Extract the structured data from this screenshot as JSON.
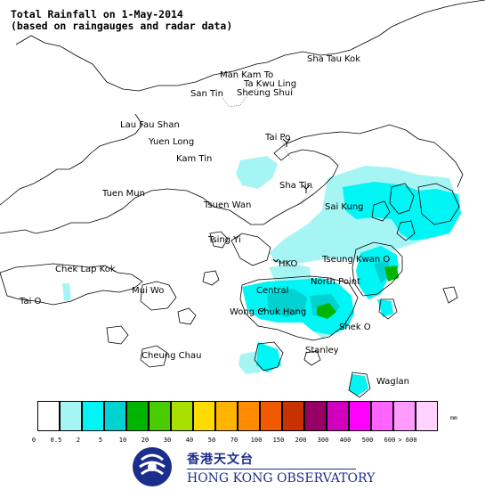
{
  "title": {
    "line1": "Total Rainfall on 1-May-2014",
    "line2": "(based on raingauges and radar data)"
  },
  "places": [
    {
      "name": "Sha Tau Kok"
    },
    {
      "name": "Man Kam To"
    },
    {
      "name": "Ta Kwu Ling"
    },
    {
      "name": "San Tin"
    },
    {
      "name": "Sheung Shui"
    },
    {
      "name": "Lau Fau Shan"
    },
    {
      "name": "Yuen Long"
    },
    {
      "name": "Kam Tin"
    },
    {
      "name": "Tai Po"
    },
    {
      "name": "Sha Tin"
    },
    {
      "name": "Tuen Mun"
    },
    {
      "name": "Tsuen Wan"
    },
    {
      "name": "Sai Kung"
    },
    {
      "name": "Tsing Yi"
    },
    {
      "name": "Chek Lap Kok"
    },
    {
      "name": "HKO"
    },
    {
      "name": "Tseung Kwan O"
    },
    {
      "name": "North Point"
    },
    {
      "name": "Central"
    },
    {
      "name": "Mui Wo"
    },
    {
      "name": "Tai O"
    },
    {
      "name": "Wong Chuk Hang"
    },
    {
      "name": "Shek O"
    },
    {
      "name": "Stanley"
    },
    {
      "name": "Cheung Chau"
    },
    {
      "name": "Waglan"
    }
  ],
  "legend": {
    "unit": "mm",
    "ticks": [
      "0",
      "0.5",
      "2",
      "5",
      "10",
      "20",
      "30",
      "40",
      "50",
      "70",
      "100",
      "150",
      "200",
      "300",
      "400",
      "500",
      "600",
      "> 600"
    ],
    "colors": [
      "#ffffff",
      "#a6f5f5",
      "#00f5f5",
      "#00d2d2",
      "#00b400",
      "#49cd00",
      "#a8e000",
      "#ffdc00",
      "#ffb400",
      "#ff8c00",
      "#f05a00",
      "#c83200",
      "#960064",
      "#d200be",
      "#ff00ff",
      "#ff64ff",
      "#ff9bff",
      "#ffd2ff"
    ]
  },
  "rain_colors": {
    "light": "#a6f5f5",
    "medium": "#00f5f5",
    "heavy": "#00d2d2",
    "peak": "#00b400"
  },
  "logo": {
    "chinese": "香港天文台",
    "english": "HONG KONG OBSERVATORY",
    "color": "#1c2e8c"
  }
}
